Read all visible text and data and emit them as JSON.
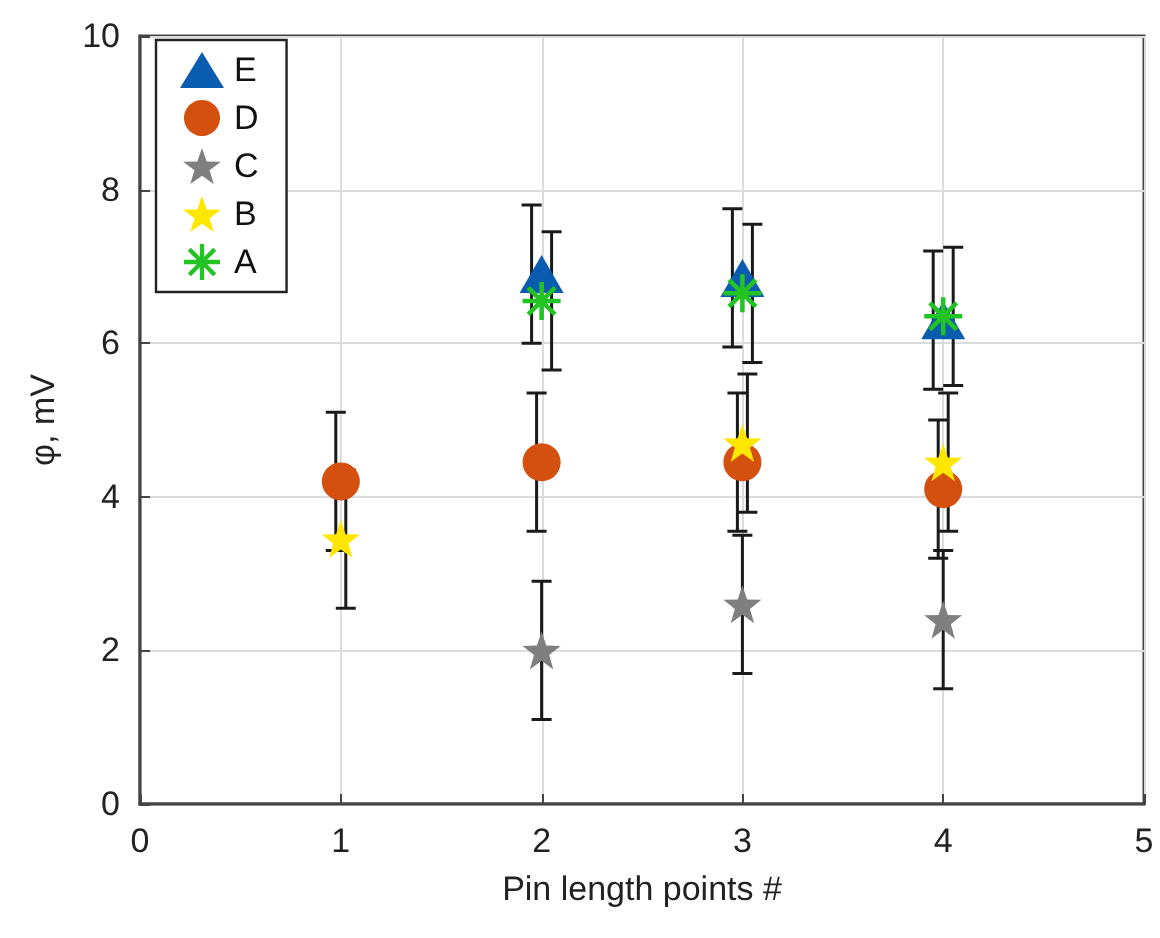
{
  "chart_data": {
    "type": "scatter",
    "xlabel": "Pin length points #",
    "ylabel": "φ, mV",
    "xlim": [
      0,
      5
    ],
    "xticks": [
      0,
      1,
      2,
      3,
      4,
      5
    ],
    "ylim": [
      0,
      10
    ],
    "yticks": [
      0,
      2,
      4,
      6,
      8,
      10
    ],
    "grid": true,
    "legend": "top left",
    "series": [
      {
        "name": "E",
        "color": "#0a5cb0",
        "marker": "triangle",
        "x": [
          2,
          3,
          4
        ],
        "values": [
          6.9,
          6.85,
          6.3
        ],
        "errors": [
          0.9,
          0.9,
          0.9
        ]
      },
      {
        "name": "D",
        "color": "#d4500f",
        "marker": "circle",
        "x": [
          1,
          2,
          3,
          4
        ],
        "values": [
          4.2,
          4.45,
          4.45,
          4.1
        ],
        "errors": [
          0.9,
          0.9,
          0.9,
          0.9
        ]
      },
      {
        "name": "C",
        "color": "#7f7f7f",
        "marker": "star",
        "x": [
          2,
          3,
          4
        ],
        "values": [
          2.0,
          2.6,
          2.4
        ],
        "errors": [
          0.9,
          0.9,
          0.9
        ]
      },
      {
        "name": "B",
        "color": "#ffe600",
        "marker": "star",
        "x": [
          1,
          3,
          4
        ],
        "values": [
          3.45,
          4.7,
          4.45
        ],
        "errors": [
          0.9,
          0.9,
          0.9
        ]
      },
      {
        "name": "A",
        "color": "#22c322",
        "marker": "cross",
        "x": [
          2,
          3,
          4
        ],
        "values": [
          6.55,
          6.65,
          6.35
        ],
        "errors": [
          0.9,
          0.9,
          0.9
        ]
      }
    ]
  }
}
